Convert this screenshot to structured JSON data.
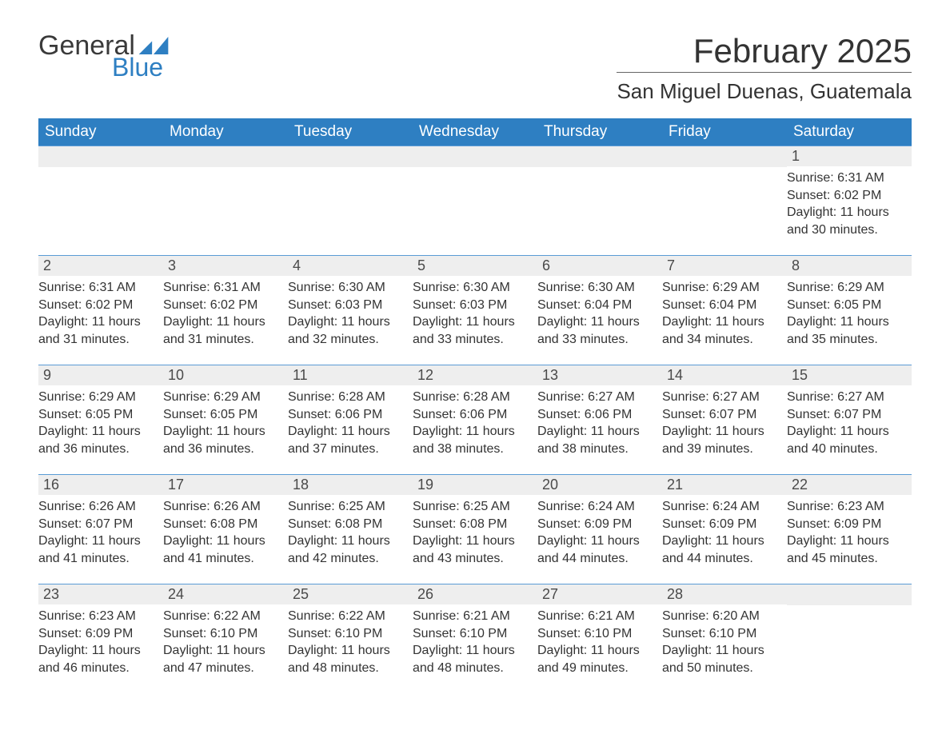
{
  "logo": {
    "text1": "General",
    "text2": "Blue"
  },
  "title": "February 2025",
  "location": "San Miguel Duenas, Guatemala",
  "colors": {
    "header_bg": "#2e7fc2",
    "header_text": "#ffffff",
    "day_number_bg": "#eeeeee",
    "day_number_text": "#4a4a4a",
    "body_text": "#333333",
    "week_border": "#5a9bd5",
    "background": "#ffffff"
  },
  "typography": {
    "title_fontsize": 42,
    "location_fontsize": 26,
    "weekday_fontsize": 19,
    "daynum_fontsize": 18,
    "body_fontsize": 16,
    "font_family": "Segoe UI, Arial, sans-serif"
  },
  "weekdays": [
    "Sunday",
    "Monday",
    "Tuesday",
    "Wednesday",
    "Thursday",
    "Friday",
    "Saturday"
  ],
  "weeks": [
    [
      {
        "n": "",
        "lines": []
      },
      {
        "n": "",
        "lines": []
      },
      {
        "n": "",
        "lines": []
      },
      {
        "n": "",
        "lines": []
      },
      {
        "n": "",
        "lines": []
      },
      {
        "n": "",
        "lines": []
      },
      {
        "n": "1",
        "lines": [
          "Sunrise: 6:31 AM",
          "Sunset: 6:02 PM",
          "Daylight: 11 hours and 30 minutes."
        ]
      }
    ],
    [
      {
        "n": "2",
        "lines": [
          "Sunrise: 6:31 AM",
          "Sunset: 6:02 PM",
          "Daylight: 11 hours and 31 minutes."
        ]
      },
      {
        "n": "3",
        "lines": [
          "Sunrise: 6:31 AM",
          "Sunset: 6:02 PM",
          "Daylight: 11 hours and 31 minutes."
        ]
      },
      {
        "n": "4",
        "lines": [
          "Sunrise: 6:30 AM",
          "Sunset: 6:03 PM",
          "Daylight: 11 hours and 32 minutes."
        ]
      },
      {
        "n": "5",
        "lines": [
          "Sunrise: 6:30 AM",
          "Sunset: 6:03 PM",
          "Daylight: 11 hours and 33 minutes."
        ]
      },
      {
        "n": "6",
        "lines": [
          "Sunrise: 6:30 AM",
          "Sunset: 6:04 PM",
          "Daylight: 11 hours and 33 minutes."
        ]
      },
      {
        "n": "7",
        "lines": [
          "Sunrise: 6:29 AM",
          "Sunset: 6:04 PM",
          "Daylight: 11 hours and 34 minutes."
        ]
      },
      {
        "n": "8",
        "lines": [
          "Sunrise: 6:29 AM",
          "Sunset: 6:05 PM",
          "Daylight: 11 hours and 35 minutes."
        ]
      }
    ],
    [
      {
        "n": "9",
        "lines": [
          "Sunrise: 6:29 AM",
          "Sunset: 6:05 PM",
          "Daylight: 11 hours and 36 minutes."
        ]
      },
      {
        "n": "10",
        "lines": [
          "Sunrise: 6:29 AM",
          "Sunset: 6:05 PM",
          "Daylight: 11 hours and 36 minutes."
        ]
      },
      {
        "n": "11",
        "lines": [
          "Sunrise: 6:28 AM",
          "Sunset: 6:06 PM",
          "Daylight: 11 hours and 37 minutes."
        ]
      },
      {
        "n": "12",
        "lines": [
          "Sunrise: 6:28 AM",
          "Sunset: 6:06 PM",
          "Daylight: 11 hours and 38 minutes."
        ]
      },
      {
        "n": "13",
        "lines": [
          "Sunrise: 6:27 AM",
          "Sunset: 6:06 PM",
          "Daylight: 11 hours and 38 minutes."
        ]
      },
      {
        "n": "14",
        "lines": [
          "Sunrise: 6:27 AM",
          "Sunset: 6:07 PM",
          "Daylight: 11 hours and 39 minutes."
        ]
      },
      {
        "n": "15",
        "lines": [
          "Sunrise: 6:27 AM",
          "Sunset: 6:07 PM",
          "Daylight: 11 hours and 40 minutes."
        ]
      }
    ],
    [
      {
        "n": "16",
        "lines": [
          "Sunrise: 6:26 AM",
          "Sunset: 6:07 PM",
          "Daylight: 11 hours and 41 minutes."
        ]
      },
      {
        "n": "17",
        "lines": [
          "Sunrise: 6:26 AM",
          "Sunset: 6:08 PM",
          "Daylight: 11 hours and 41 minutes."
        ]
      },
      {
        "n": "18",
        "lines": [
          "Sunrise: 6:25 AM",
          "Sunset: 6:08 PM",
          "Daylight: 11 hours and 42 minutes."
        ]
      },
      {
        "n": "19",
        "lines": [
          "Sunrise: 6:25 AM",
          "Sunset: 6:08 PM",
          "Daylight: 11 hours and 43 minutes."
        ]
      },
      {
        "n": "20",
        "lines": [
          "Sunrise: 6:24 AM",
          "Sunset: 6:09 PM",
          "Daylight: 11 hours and 44 minutes."
        ]
      },
      {
        "n": "21",
        "lines": [
          "Sunrise: 6:24 AM",
          "Sunset: 6:09 PM",
          "Daylight: 11 hours and 44 minutes."
        ]
      },
      {
        "n": "22",
        "lines": [
          "Sunrise: 6:23 AM",
          "Sunset: 6:09 PM",
          "Daylight: 11 hours and 45 minutes."
        ]
      }
    ],
    [
      {
        "n": "23",
        "lines": [
          "Sunrise: 6:23 AM",
          "Sunset: 6:09 PM",
          "Daylight: 11 hours and 46 minutes."
        ]
      },
      {
        "n": "24",
        "lines": [
          "Sunrise: 6:22 AM",
          "Sunset: 6:10 PM",
          "Daylight: 11 hours and 47 minutes."
        ]
      },
      {
        "n": "25",
        "lines": [
          "Sunrise: 6:22 AM",
          "Sunset: 6:10 PM",
          "Daylight: 11 hours and 48 minutes."
        ]
      },
      {
        "n": "26",
        "lines": [
          "Sunrise: 6:21 AM",
          "Sunset: 6:10 PM",
          "Daylight: 11 hours and 48 minutes."
        ]
      },
      {
        "n": "27",
        "lines": [
          "Sunrise: 6:21 AM",
          "Sunset: 6:10 PM",
          "Daylight: 11 hours and 49 minutes."
        ]
      },
      {
        "n": "28",
        "lines": [
          "Sunrise: 6:20 AM",
          "Sunset: 6:10 PM",
          "Daylight: 11 hours and 50 minutes."
        ]
      },
      {
        "n": "",
        "lines": []
      }
    ]
  ]
}
